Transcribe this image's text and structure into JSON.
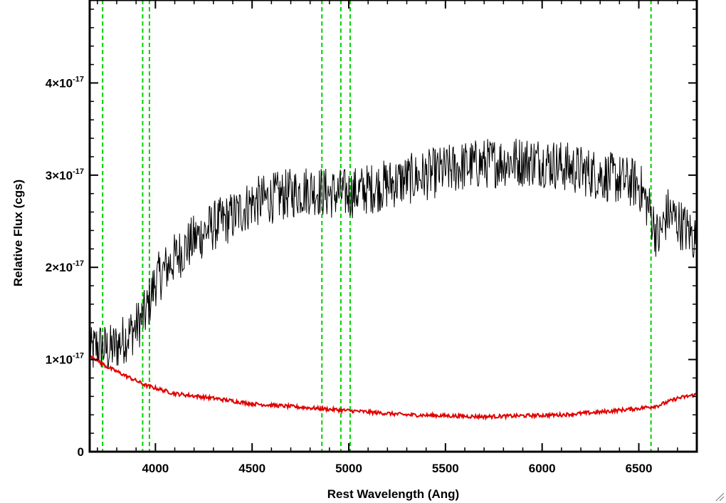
{
  "chart_data": {
    "type": "line",
    "xlabel": "Rest Wavelength (Ang)",
    "ylabel": "Relative Flux (cgs)",
    "xlim": [
      3660,
      6800
    ],
    "ylim": [
      0,
      4.9e-17
    ],
    "x_ticks": [
      4000,
      4500,
      5000,
      5500,
      6000,
      6500
    ],
    "y_ticks": [
      {
        "value": 0,
        "mantissa": "0",
        "exponent": ""
      },
      {
        "value": 1e-17,
        "mantissa": "1×10",
        "exponent": "-17"
      },
      {
        "value": 2e-17,
        "mantissa": "2×10",
        "exponent": "-17"
      },
      {
        "value": 3e-17,
        "mantissa": "3×10",
        "exponent": "-17"
      },
      {
        "value": 4e-17,
        "mantissa": "4×10",
        "exponent": "-17"
      }
    ],
    "reference_lines": {
      "color": "#00d000",
      "style": "dashed",
      "x": [
        3727,
        3934,
        3969,
        4861,
        4959,
        5007,
        6563
      ]
    },
    "series": [
      {
        "color": "#000000",
        "style": "noisy",
        "x": [
          3660,
          3700,
          3760,
          3800,
          3850,
          3900,
          3950,
          4000,
          4100,
          4200,
          4300,
          4400,
          4500,
          4600,
          4700,
          4800,
          4900,
          5000,
          5100,
          5200,
          5300,
          5400,
          5500,
          5600,
          5800,
          6000,
          6200,
          6400,
          6500,
          6560,
          6600,
          6650,
          6700,
          6750,
          6800
        ],
        "values": [
          1.05e-17,
          1.15e-17,
          1.1e-17,
          1.15e-17,
          1.25e-17,
          1.35e-17,
          1.5e-17,
          1.85e-17,
          2.1e-17,
          2.3e-17,
          2.45e-17,
          2.55e-17,
          2.7e-17,
          2.75e-17,
          2.8e-17,
          2.85e-17,
          2.8e-17,
          2.8e-17,
          2.85e-17,
          2.9e-17,
          2.95e-17,
          3e-17,
          3.05e-17,
          3.1e-17,
          3.15e-17,
          3.15e-17,
          3.05e-17,
          2.95e-17,
          2.9e-17,
          2.6e-17,
          2.3e-17,
          2.6e-17,
          2.5e-17,
          2.4e-17,
          2.3e-17
        ],
        "noise": 2.8e-18
      },
      {
        "color": "#e00000",
        "style": "smooth",
        "x": [
          3660,
          3750,
          3850,
          3950,
          4100,
          4300,
          4500,
          4700,
          4900,
          5100,
          5300,
          5500,
          5700,
          5900,
          6100,
          6300,
          6500,
          6600,
          6700,
          6800
        ],
        "values": [
          1.05e-17,
          9.2e-18,
          8.2e-18,
          7.2e-18,
          6.3e-18,
          5.8e-18,
          5.2e-18,
          4.9e-18,
          4.6e-18,
          4.3e-18,
          4e-18,
          3.9e-18,
          3.8e-18,
          3.9e-18,
          4e-18,
          4.3e-18,
          4.7e-18,
          5e-18,
          5.8e-18,
          6.2e-18
        ],
        "noise": 2e-19
      }
    ]
  }
}
